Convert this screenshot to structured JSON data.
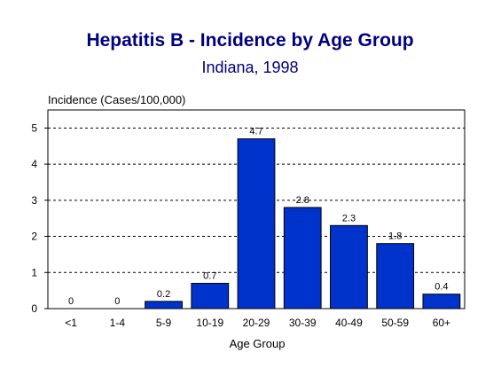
{
  "chart_data": {
    "type": "bar",
    "title": "Hepatitis B - Incidence by Age Group",
    "subtitle": "Indiana, 1998",
    "ylabel": "Incidence (Cases/100,000)",
    "xlabel": "Age Group",
    "categories": [
      "<1",
      "1-4",
      "5-9",
      "10-19",
      "20-29",
      "30-39",
      "40-49",
      "50-59",
      "60+"
    ],
    "values": [
      0,
      0,
      0.2,
      0.7,
      4.7,
      2.8,
      2.3,
      1.8,
      0.4
    ],
    "data_labels": [
      "0",
      "0",
      "0.2",
      "0.7",
      "4.7",
      "2.8",
      "2.3",
      "1.8",
      "0.4"
    ],
    "y_ticks": [
      0,
      1,
      2,
      3,
      4,
      5
    ],
    "ylim": [
      0,
      5.5
    ],
    "grid": true,
    "bar_color": "#0033cc"
  }
}
